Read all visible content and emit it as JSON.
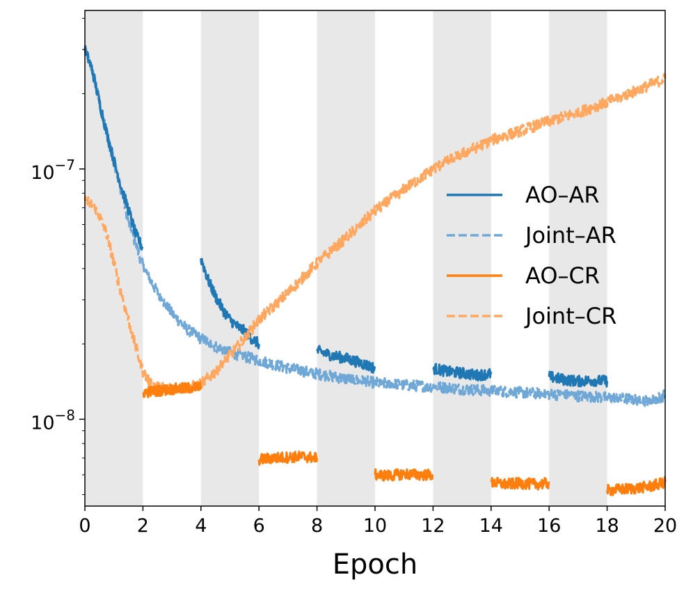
{
  "chart_data": {
    "type": "line",
    "title": "",
    "xlabel": "Epoch",
    "ylabel": "",
    "xlim": [
      0,
      20
    ],
    "ylim": [
      4.5e-09,
      4.3e-07
    ],
    "yscale": "log",
    "grid": false,
    "xticks": [
      "0",
      "2",
      "4",
      "6",
      "8",
      "10",
      "12",
      "14",
      "16",
      "18",
      "20"
    ],
    "yticks": [
      {
        "value": 1e-07,
        "base": "10",
        "exp": "−7"
      },
      {
        "value": 1e-08,
        "base": "10",
        "exp": "−8"
      }
    ],
    "shaded_epoch_ranges": [
      [
        0,
        2
      ],
      [
        4,
        6
      ],
      [
        8,
        10
      ],
      [
        12,
        14
      ],
      [
        16,
        18
      ]
    ],
    "legend_position": "center-right",
    "series": [
      {
        "name": "AO–AR",
        "color": "#1f77b4",
        "style": "solid",
        "segments": [
          {
            "x": [
              0,
              0.25,
              0.5,
              0.75,
              1.0,
              1.25,
              1.5,
              1.75,
              2.0
            ],
            "y": [
              3e-07,
              2.5e-07,
              1.85e-07,
              1.4e-07,
              1.08e-07,
              8.5e-08,
              6.9e-08,
              5.5e-08,
              4.8e-08
            ]
          },
          {
            "x": [
              4.0,
              4.25,
              4.5,
              4.75,
              5.0,
              5.25,
              5.5,
              5.75,
              6.0
            ],
            "y": [
              4.4e-08,
              3.6e-08,
              3.1e-08,
              2.75e-08,
              2.5e-08,
              2.35e-08,
              2.25e-08,
              2.1e-08,
              2e-08
            ]
          },
          {
            "x": [
              8.0,
              8.5,
              9.0,
              9.5,
              10.0
            ],
            "y": [
              1.88e-08,
              1.8e-08,
              1.75e-08,
              1.68e-08,
              1.6e-08
            ]
          },
          {
            "x": [
              12.0,
              12.5,
              13.0,
              13.5,
              14.0
            ],
            "y": [
              1.6e-08,
              1.55e-08,
              1.53e-08,
              1.5e-08,
              1.52e-08
            ]
          },
          {
            "x": [
              16.0,
              16.5,
              17.0,
              17.5,
              18.0
            ],
            "y": [
              1.48e-08,
              1.44e-08,
              1.42e-08,
              1.43e-08,
              1.42e-08
            ]
          }
        ]
      },
      {
        "name": "Joint–AR",
        "color": "#6fa8d6",
        "style": "dashed",
        "segments": [
          {
            "x": [
              0,
              0.25,
              0.5,
              0.75,
              1.0,
              1.25,
              1.5,
              1.75,
              2.0,
              2.5,
              3.0,
              3.5,
              4.0,
              4.5,
              5.0,
              5.5,
              6.0,
              7.0,
              8.0,
              9.0,
              10.0,
              11.0,
              12.0,
              13.0,
              14.0,
              15.0,
              16.0,
              17.0,
              18.0,
              19.0,
              19.5,
              20.0
            ],
            "y": [
              3e-07,
              2.5e-07,
              1.85e-07,
              1.4e-07,
              1.08e-07,
              8.2e-08,
              6.2e-08,
              5e-08,
              4.1e-08,
              3.2e-08,
              2.65e-08,
              2.3e-08,
              2.1e-08,
              1.95e-08,
              1.85e-08,
              1.78e-08,
              1.72e-08,
              1.6e-08,
              1.52e-08,
              1.45e-08,
              1.4e-08,
              1.37e-08,
              1.35e-08,
              1.32e-08,
              1.3e-08,
              1.28e-08,
              1.26e-08,
              1.24e-08,
              1.22e-08,
              1.2e-08,
              1.18e-08,
              1.25e-08
            ]
          }
        ]
      },
      {
        "name": "AO–CR",
        "color": "#ff7f0e",
        "style": "solid",
        "segments": [
          {
            "x": [
              2.0,
              2.5,
              3.0,
              3.5,
              4.0
            ],
            "y": [
              1.28e-08,
              1.3e-08,
              1.32e-08,
              1.33e-08,
              1.35e-08
            ]
          },
          {
            "x": [
              6.0,
              6.5,
              7.0,
              7.5,
              8.0
            ],
            "y": [
              6.9e-09,
              7e-09,
              7.05e-09,
              7.1e-09,
              7e-09
            ]
          },
          {
            "x": [
              10.0,
              10.5,
              11.0,
              11.5,
              12.0
            ],
            "y": [
              6e-09,
              5.95e-09,
              6.05e-09,
              6e-09,
              6e-09
            ]
          },
          {
            "x": [
              14.0,
              14.5,
              15.0,
              15.5,
              16.0
            ],
            "y": [
              5.6e-09,
              5.5e-09,
              5.55e-09,
              5.5e-09,
              5.55e-09
            ]
          },
          {
            "x": [
              18.0,
              18.5,
              19.0,
              19.5,
              20.0
            ],
            "y": [
              5.2e-09,
              5.25e-09,
              5.3e-09,
              5.4e-09,
              5.6e-09
            ]
          }
        ]
      },
      {
        "name": "Joint–CR",
        "color": "#ffa75e",
        "style": "dashed",
        "segments": [
          {
            "x": [
              0,
              0.25,
              0.5,
              0.75,
              1.0,
              1.25,
              1.5,
              1.75,
              2.0,
              2.25,
              2.5,
              3.0,
              3.5,
              4.0,
              4.5,
              5.0,
              5.5,
              6.0,
              7.0,
              8.0,
              9.0,
              10.0,
              11.0,
              12.0,
              13.0,
              14.0,
              15.0,
              16.0,
              17.0,
              18.0,
              19.0,
              20.0
            ],
            "y": [
              7.5e-08,
              7.2e-08,
              6.5e-08,
              5.5e-08,
              4.2e-08,
              3.2e-08,
              2.5e-08,
              1.95e-08,
              1.55e-08,
              1.4e-08,
              1.35e-08,
              1.33e-08,
              1.33e-08,
              1.38e-08,
              1.55e-08,
              1.8e-08,
              2.1e-08,
              2.5e-08,
              3.2e-08,
              4.2e-08,
              5.3e-08,
              6.8e-08,
              8.3e-08,
              1e-07,
              1.15e-07,
              1.3e-07,
              1.42e-07,
              1.55e-07,
              1.68e-07,
              1.85e-07,
              2.05e-07,
              2.3e-07
            ]
          }
        ]
      }
    ]
  }
}
